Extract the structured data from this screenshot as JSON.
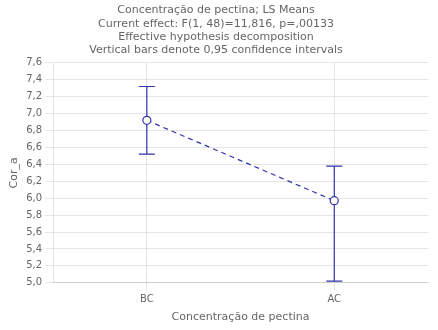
{
  "chart_data": {
    "type": "line",
    "title": [
      "Concentração de pectina; LS Means",
      "Current effect: F(1, 48)=11,816, p=,00133",
      "Effective hypothesis decomposition",
      "Vertical bars denote 0,95 confidence intervals"
    ],
    "x_label": "Concentração de pectina",
    "y_label": "Cor_a",
    "categories": [
      "BC",
      "AC"
    ],
    "values": [
      6.92,
      5.97
    ],
    "upper": [
      7.32,
      6.38
    ],
    "lower": [
      6.52,
      5.02
    ],
    "color": "#3333aa",
    "marker": "circle_open",
    "line_style": "dashed",
    "ylim": [
      5.0,
      7.6
    ],
    "yticks": [
      {
        "value": 5.0,
        "label": "5,0"
      },
      {
        "value": 5.2,
        "label": "5,2"
      },
      {
        "value": 5.4,
        "label": "5,4"
      },
      {
        "value": 5.6,
        "label": "5,6"
      },
      {
        "value": 5.8,
        "label": "5,8"
      },
      {
        "value": 6.0,
        "label": "6,0"
      },
      {
        "value": 6.2,
        "label": "6,2"
      },
      {
        "value": 6.4,
        "label": "6,4"
      },
      {
        "value": 6.6,
        "label": "6,6"
      },
      {
        "value": 6.8,
        "label": "6,8"
      },
      {
        "value": 7.0,
        "label": "7,0"
      },
      {
        "value": 7.2,
        "label": "7,2"
      },
      {
        "value": 7.4,
        "label": "7,4"
      },
      {
        "value": 7.6,
        "label": "7,6"
      }
    ],
    "grid": true
  }
}
